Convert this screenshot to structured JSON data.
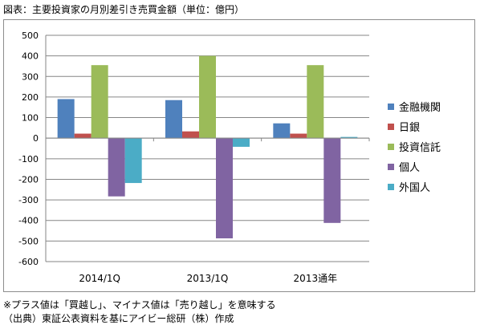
{
  "caption": "図表：主要投資家の月別差引き売買金額（単位：億円）",
  "notes": [
    "※プラス値は「買越し」、マイナス値は「売り越し」を意味する",
    "（出典）東証公表資料を基にアイビー総研（株）作成"
  ],
  "chart_data": {
    "type": "bar",
    "categories": [
      "2014/1Q",
      "2013/1Q",
      "2013通年"
    ],
    "series": [
      {
        "name": "金融機関",
        "color": "#4f81bd",
        "values": [
          190,
          185,
          72
        ]
      },
      {
        "name": "日銀",
        "color": "#c0504d",
        "values": [
          22,
          33,
          22
        ]
      },
      {
        "name": "投資信託",
        "color": "#9bbb59",
        "values": [
          355,
          400,
          355
        ]
      },
      {
        "name": "個人",
        "color": "#8064a2",
        "values": [
          -283,
          -487,
          -412
        ]
      },
      {
        "name": "外国人",
        "color": "#4bacc6",
        "values": [
          -218,
          -42,
          6
        ]
      }
    ],
    "ylim": [
      -600,
      500
    ],
    "yticks": [
      500,
      400,
      300,
      200,
      100,
      0,
      -100,
      -200,
      -300,
      -400,
      -500,
      -600
    ],
    "grid": true,
    "legend": "right",
    "xlabel": "",
    "ylabel": ""
  }
}
